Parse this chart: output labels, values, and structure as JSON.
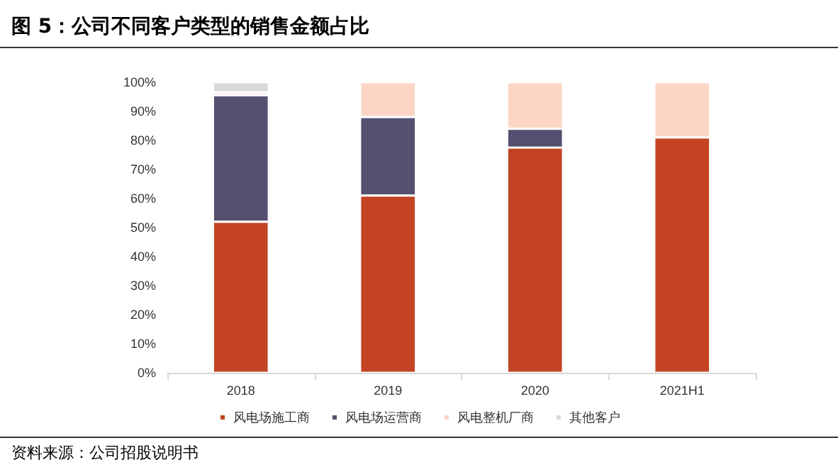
{
  "chart_data": {
    "type": "bar",
    "title": "图 5：公司不同客户类型的销售金额占比",
    "stacked": true,
    "categories": [
      "2018",
      "2019",
      "2020",
      "2021H1"
    ],
    "series": [
      {
        "name": "风电场施工商",
        "color": "#c34322",
        "values": [
          52,
          61,
          77.5,
          81
        ]
      },
      {
        "name": "风电场运营商",
        "color": "#545070",
        "values": [
          43.5,
          27,
          6.5,
          0
        ]
      },
      {
        "name": "风电整机厂商",
        "color": "#fdd5c5",
        "values": [
          1,
          12,
          16,
          19
        ]
      },
      {
        "name": "其他客户",
        "color": "#d9d9d9",
        "values": [
          3.5,
          0,
          0,
          0
        ]
      }
    ],
    "ylim": [
      0,
      100
    ],
    "yticks": [
      {
        "value": 0,
        "label": "0%"
      },
      {
        "value": 10,
        "label": "10%"
      },
      {
        "value": 20,
        "label": "20%"
      },
      {
        "value": 30,
        "label": "30%"
      },
      {
        "value": 40,
        "label": "40%"
      },
      {
        "value": 50,
        "label": "50%"
      },
      {
        "value": 60,
        "label": "60%"
      },
      {
        "value": 70,
        "label": "70%"
      },
      {
        "value": 80,
        "label": "80%"
      },
      {
        "value": 90,
        "label": "90%"
      },
      {
        "value": 100,
        "label": "100%"
      }
    ],
    "grid": false,
    "legend": "bottom",
    "annotations": [
      "资料来源：公司招股说明书"
    ]
  }
}
